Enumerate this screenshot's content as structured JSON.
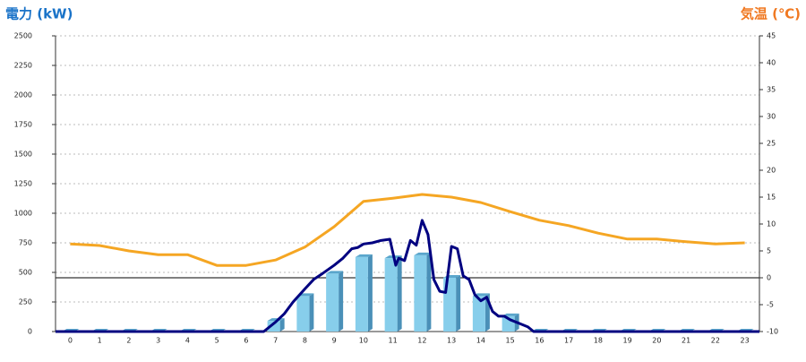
{
  "chart_data": {
    "type": "bar-line",
    "title_left": "電力 (kW)",
    "title_right": "気温 (℃)",
    "categories": [
      "0",
      "1",
      "2",
      "3",
      "4",
      "5",
      "6",
      "7",
      "8",
      "9",
      "10",
      "11",
      "12",
      "13",
      "14",
      "15",
      "16",
      "17",
      "18",
      "19",
      "20",
      "21",
      "22",
      "23"
    ],
    "ylim": [
      0,
      2500
    ],
    "yticks": [
      0,
      250,
      500,
      750,
      1000,
      1250,
      1500,
      1750,
      2000,
      2250,
      2500
    ],
    "y2lim": [
      -10,
      45
    ],
    "y2ticks": [
      -10,
      -5,
      0,
      5,
      10,
      15,
      20,
      25,
      30,
      35,
      40,
      45
    ],
    "xlim": [
      -0.5,
      23.5
    ],
    "grid": true,
    "series": [
      {
        "type": "bar",
        "color": "#87ceeb",
        "values": [
          0,
          0,
          0,
          0,
          0,
          0,
          0,
          90,
          300,
          490,
          630,
          620,
          645,
          455,
          300,
          130,
          0,
          0,
          0,
          0,
          0,
          0,
          0,
          0
        ]
      },
      {
        "type": "line",
        "color": "#000080",
        "x": [
          -0.5,
          6.6,
          7,
          7.3,
          7.6,
          8,
          8.3,
          8.6,
          9,
          9.3,
          9.6,
          9.8,
          10,
          10.3,
          10.6,
          10.9,
          11.1,
          11.2,
          11.4,
          11.6,
          11.8,
          12,
          12.2,
          12.4,
          12.6,
          12.8,
          13,
          13.2,
          13.4,
          13.6,
          13.8,
          14,
          14.2,
          14.4,
          14.6,
          14.8,
          15,
          15.3,
          15.6,
          15.8,
          23.5
        ],
        "values": [
          0,
          0,
          80,
          150,
          250,
          360,
          440,
          490,
          560,
          620,
          700,
          710,
          740,
          750,
          770,
          780,
          560,
          620,
          600,
          770,
          730,
          940,
          820,
          440,
          340,
          330,
          720,
          700,
          470,
          440,
          310,
          260,
          290,
          170,
          130,
          130,
          100,
          70,
          40,
          0,
          0
        ]
      },
      {
        "type": "line",
        "axis": "y2",
        "color": "#f5a623",
        "values": [
          6.3,
          6,
          5,
          4.3,
          4.3,
          2.3,
          2.3,
          3.3,
          5.7,
          9.5,
          14.2,
          14.8,
          15.5,
          15,
          14,
          12.3,
          10.7,
          9.7,
          8.3,
          7.2,
          7.2,
          6.7,
          6.3,
          6.5
        ]
      }
    ]
  }
}
